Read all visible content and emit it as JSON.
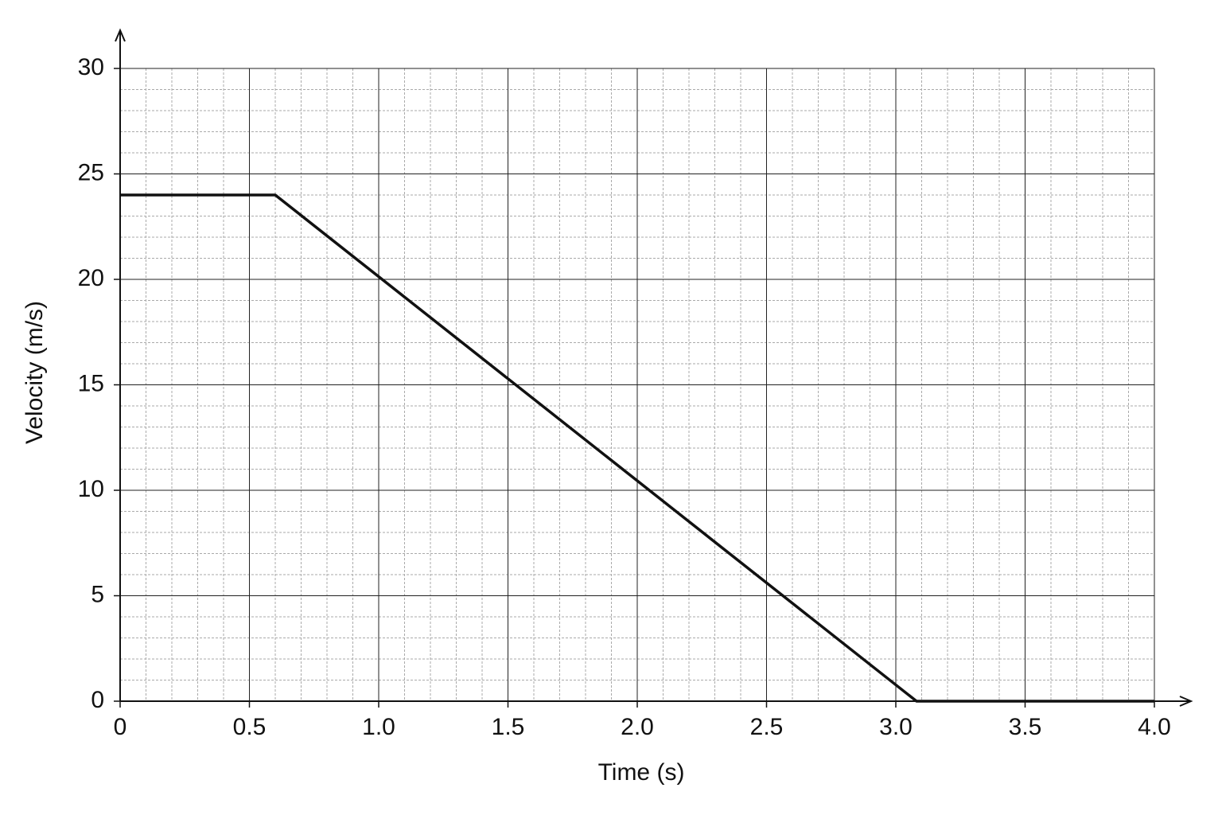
{
  "chart_data": {
    "type": "line",
    "x_label": "Time (s)",
    "y_label": "Velocity (m/s)",
    "x": [
      0,
      0.6,
      3.08,
      4.0
    ],
    "series": [
      {
        "name": "Velocity",
        "color": "#111111",
        "values": [
          24,
          24,
          0,
          0
        ]
      }
    ],
    "xlim": [
      0,
      4.0
    ],
    "xticks": [
      0,
      0.5,
      {
        "value": 1.0,
        "label": "1.0"
      },
      1.5,
      {
        "value": 2.0,
        "label": "2.0"
      },
      2.5,
      {
        "value": 3.0,
        "label": "3.0"
      },
      3.5,
      {
        "value": 4.0,
        "label": "4.0"
      }
    ],
    "ylim": [
      0,
      30
    ],
    "yticks": [
      0,
      5,
      10,
      15,
      20,
      25,
      30
    ],
    "grid": true,
    "minor_grid": true
  }
}
